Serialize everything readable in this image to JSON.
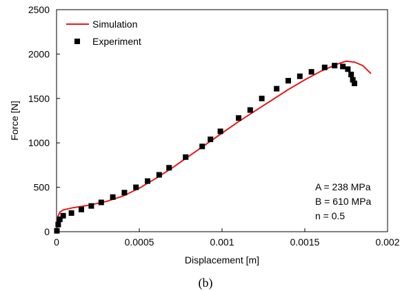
{
  "chart_data": {
    "type": "line",
    "xlabel": "Displacement [m]",
    "ylabel": "Force [N]",
    "xlim": [
      0,
      0.002
    ],
    "ylim": [
      0,
      2500
    ],
    "x_ticks": [
      0,
      0.0005,
      0.001,
      0.0015,
      0.002
    ],
    "x_tick_labels": [
      "0",
      "0.0005",
      "0.001",
      "0.0015",
      "0.002"
    ],
    "y_ticks": [
      0,
      500,
      1000,
      1500,
      2000,
      2500
    ],
    "y_tick_labels": [
      "0",
      "500",
      "1000",
      "1500",
      "2000",
      "2500"
    ],
    "grid": false,
    "legend_position": "top-left",
    "series": [
      {
        "name": "Simulation",
        "kind": "line",
        "color": "#e41a1c",
        "x": [
          0,
          1e-05,
          2e-05,
          4e-05,
          0.0001,
          0.0002,
          0.0003,
          0.0004,
          0.0005,
          0.0006,
          0.0007,
          0.0008,
          0.0009,
          0.001,
          0.0011,
          0.0012,
          0.0013,
          0.0014,
          0.0015,
          0.0016,
          0.0017,
          0.00175,
          0.0018,
          0.00185,
          0.0019
        ],
        "y": [
          0,
          180,
          220,
          245,
          270,
          300,
          340,
          400,
          490,
          600,
          720,
          850,
          980,
          1110,
          1240,
          1360,
          1480,
          1600,
          1710,
          1810,
          1890,
          1920,
          1910,
          1870,
          1780
        ]
      },
      {
        "name": "Experiment",
        "kind": "scatter",
        "color": "#000000",
        "x": [
          2e-06,
          1e-05,
          2e-05,
          4e-05,
          9e-05,
          0.00015,
          0.00021,
          0.00027,
          0.00034,
          0.00041,
          0.00048,
          0.00055,
          0.00062,
          0.00068,
          0.00078,
          0.00088,
          0.00093,
          0.00099,
          0.0011,
          0.00117,
          0.00124,
          0.00133,
          0.0014,
          0.00147,
          0.00154,
          0.00162,
          0.00168,
          0.00173,
          0.00176,
          0.00178,
          0.00179,
          0.0018
        ],
        "y": [
          10,
          80,
          140,
          180,
          210,
          250,
          290,
          330,
          390,
          440,
          500,
          570,
          640,
          720,
          840,
          960,
          1040,
          1130,
          1280,
          1370,
          1500,
          1610,
          1700,
          1750,
          1800,
          1850,
          1870,
          1860,
          1830,
          1770,
          1710,
          1670
        ]
      }
    ],
    "annotations": [
      "A = 238 MPa",
      "B = 610 MPa",
      "n = 0.5"
    ]
  },
  "caption": "(b)"
}
